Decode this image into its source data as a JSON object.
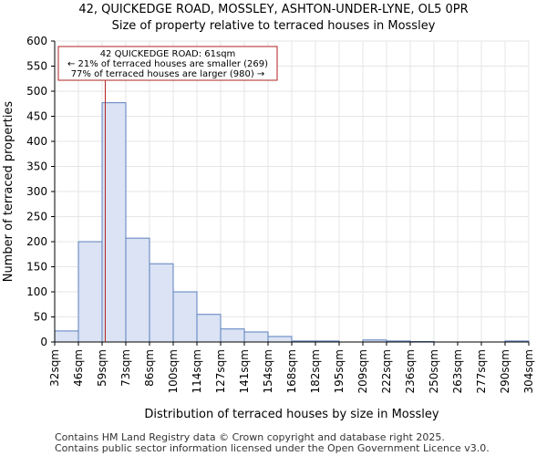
{
  "chart_data": {
    "type": "histogram",
    "title_line1": "42, QUICKEDGE ROAD, MOSSLEY, ASHTON-UNDER-LYNE, OL5 0PR",
    "title_line2": "Size of property relative to terraced houses in Mossley",
    "xlabel": "Distribution of terraced houses by size in Mossley",
    "ylabel": "Number of terraced properties",
    "ylim": [
      0,
      600
    ],
    "yticks": [
      0,
      50,
      100,
      150,
      200,
      250,
      300,
      350,
      400,
      450,
      500,
      550,
      600
    ],
    "categories": [
      "32sqm",
      "46sqm",
      "59sqm",
      "73sqm",
      "86sqm",
      "100sqm",
      "114sqm",
      "127sqm",
      "141sqm",
      "154sqm",
      "168sqm",
      "182sqm",
      "195sqm",
      "209sqm",
      "222sqm",
      "236sqm",
      "250sqm",
      "263sqm",
      "277sqm",
      "290sqm",
      "304sqm"
    ],
    "values": [
      22,
      200,
      477,
      207,
      156,
      100,
      55,
      26,
      20,
      11,
      2,
      2,
      0,
      4,
      2,
      1,
      0,
      0,
      0,
      2
    ],
    "marker_value": 61,
    "marker_unit": "sqm",
    "annotation": {
      "line1": "42 QUICKEDGE ROAD: 61sqm",
      "line2": "← 21% of terraced houses are smaller (269)",
      "line3": "77% of terraced houses are larger (980) →"
    },
    "colors": {
      "bar_fill": "#dbe3f4",
      "bar_stroke": "#5b7fbe",
      "marker": "#b22222",
      "axis": "#000000",
      "grid": "#e6e6e6"
    }
  },
  "footer": {
    "line1": "Contains HM Land Registry data © Crown copyright and database right 2025.",
    "line2": "Contains public sector information licensed under the Open Government Licence v3.0."
  }
}
